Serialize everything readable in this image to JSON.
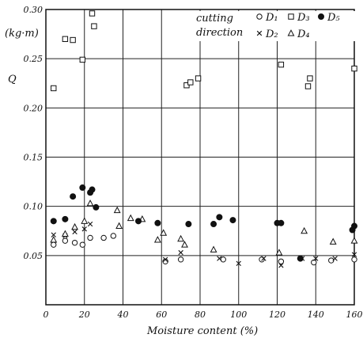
{
  "chart_data": {
    "type": "scatter",
    "title": "",
    "xlabel": "Moisture content (%)",
    "ylabel": "Q",
    "yunit": "(kg·m)",
    "xlim": [
      0,
      160
    ],
    "ylim": [
      0,
      0.3
    ],
    "x_ticks": [
      "0",
      "20",
      "40",
      "60",
      "80",
      "100",
      "120",
      "140",
      "160"
    ],
    "y_ticks": [
      "0.05",
      "0.10",
      "0.15",
      "0.20",
      "0.25",
      "0.30"
    ],
    "grid": true,
    "legend": {
      "title_line1": "cutting",
      "title_line2": "direction",
      "placement": "top-right",
      "items": [
        "D₁",
        "D₂",
        "D₃",
        "D₄",
        "D₅"
      ]
    },
    "series": [
      {
        "name": "D₁",
        "marker": "open-circle",
        "points": [
          [
            4,
            0.061
          ],
          [
            10,
            0.065
          ],
          [
            15,
            0.063
          ],
          [
            19,
            0.061
          ],
          [
            23,
            0.068
          ],
          [
            30,
            0.068
          ],
          [
            35,
            0.07
          ],
          [
            62,
            0.044
          ],
          [
            70,
            0.046
          ],
          [
            92,
            0.046
          ],
          [
            112,
            0.046
          ],
          [
            122,
            0.044
          ],
          [
            139,
            0.043
          ],
          [
            148,
            0.045
          ],
          [
            160,
            0.046
          ]
        ]
      },
      {
        "name": "D₂",
        "marker": "x",
        "points": [
          [
            4,
            0.071
          ],
          [
            10,
            0.07
          ],
          [
            15,
            0.074
          ],
          [
            20,
            0.077
          ],
          [
            23,
            0.082
          ],
          [
            62,
            0.046
          ],
          [
            70,
            0.053
          ],
          [
            90,
            0.047
          ],
          [
            100,
            0.042
          ],
          [
            113,
            0.047
          ],
          [
            122,
            0.04
          ],
          [
            133,
            0.047
          ],
          [
            140,
            0.047
          ],
          [
            150,
            0.047
          ],
          [
            160,
            0.051
          ]
        ]
      },
      {
        "name": "D₃",
        "marker": "open-square",
        "points": [
          [
            4,
            0.22
          ],
          [
            10,
            0.27
          ],
          [
            14,
            0.269
          ],
          [
            19,
            0.249
          ],
          [
            24,
            0.296
          ],
          [
            25,
            0.283
          ],
          [
            73,
            0.223
          ],
          [
            75,
            0.226
          ],
          [
            79,
            0.23
          ],
          [
            122,
            0.244
          ],
          [
            136,
            0.222
          ],
          [
            137,
            0.23
          ],
          [
            160,
            0.24
          ]
        ]
      },
      {
        "name": "D₄",
        "marker": "open-triangle",
        "points": [
          [
            4,
            0.066
          ],
          [
            10,
            0.072
          ],
          [
            15,
            0.079
          ],
          [
            20,
            0.085
          ],
          [
            23,
            0.103
          ],
          [
            37,
            0.096
          ],
          [
            38,
            0.08
          ],
          [
            44,
            0.088
          ],
          [
            50,
            0.087
          ],
          [
            58,
            0.066
          ],
          [
            61,
            0.073
          ],
          [
            70,
            0.067
          ],
          [
            72,
            0.061
          ],
          [
            87,
            0.056
          ],
          [
            121,
            0.053
          ],
          [
            134,
            0.075
          ],
          [
            149,
            0.064
          ],
          [
            160,
            0.065
          ]
        ]
      },
      {
        "name": "D₅",
        "marker": "filled-circle",
        "points": [
          [
            4,
            0.085
          ],
          [
            10,
            0.087
          ],
          [
            14,
            0.11
          ],
          [
            19,
            0.119
          ],
          [
            23,
            0.114
          ],
          [
            24,
            0.117
          ],
          [
            26,
            0.099
          ],
          [
            48,
            0.085
          ],
          [
            58,
            0.083
          ],
          [
            74,
            0.082
          ],
          [
            87,
            0.082
          ],
          [
            90,
            0.089
          ],
          [
            97,
            0.086
          ],
          [
            120,
            0.083
          ],
          [
            122,
            0.083
          ],
          [
            132,
            0.047
          ],
          [
            159,
            0.076
          ],
          [
            160,
            0.08
          ]
        ]
      }
    ]
  }
}
